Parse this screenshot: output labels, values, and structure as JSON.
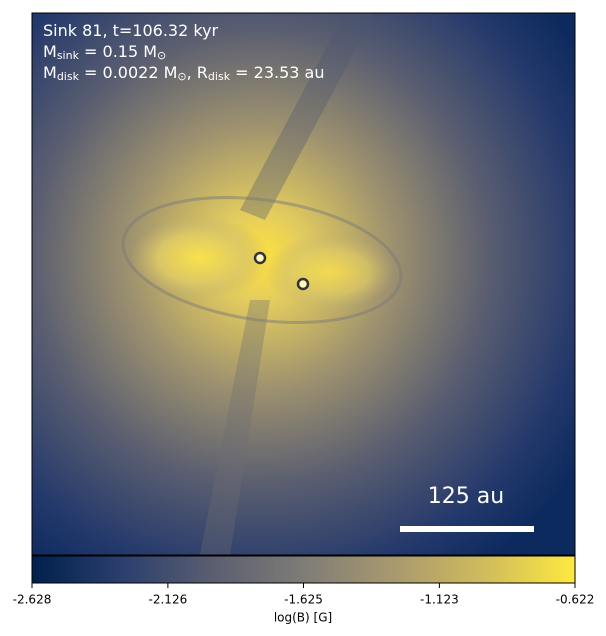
{
  "chart_data": {
    "type": "image",
    "annotation": [
      {
        "parts": [
          "Sink 81, t=106.32 kyr"
        ]
      },
      {
        "parts": [
          "M",
          "sink",
          " = 0.15 M",
          "⊙"
        ]
      },
      {
        "parts": [
          "M",
          "disk",
          " = 0.0022 M",
          "⊙",
          ", R",
          "disk",
          " = 23.53 au"
        ]
      }
    ],
    "scale_bar": "125 au",
    "colorbar": {
      "label": "log(B) [G]",
      "lim": [
        -2.628,
        -0.622
      ],
      "ticks": [
        -2.628,
        -2.126,
        -1.625,
        -1.123,
        -0.622
      ],
      "colormap": [
        "#00204c",
        "#2b3f6e",
        "#5a5e70",
        "#7f7c77",
        "#a8996f",
        "#d0bc5c",
        "#fde93f"
      ]
    }
  }
}
